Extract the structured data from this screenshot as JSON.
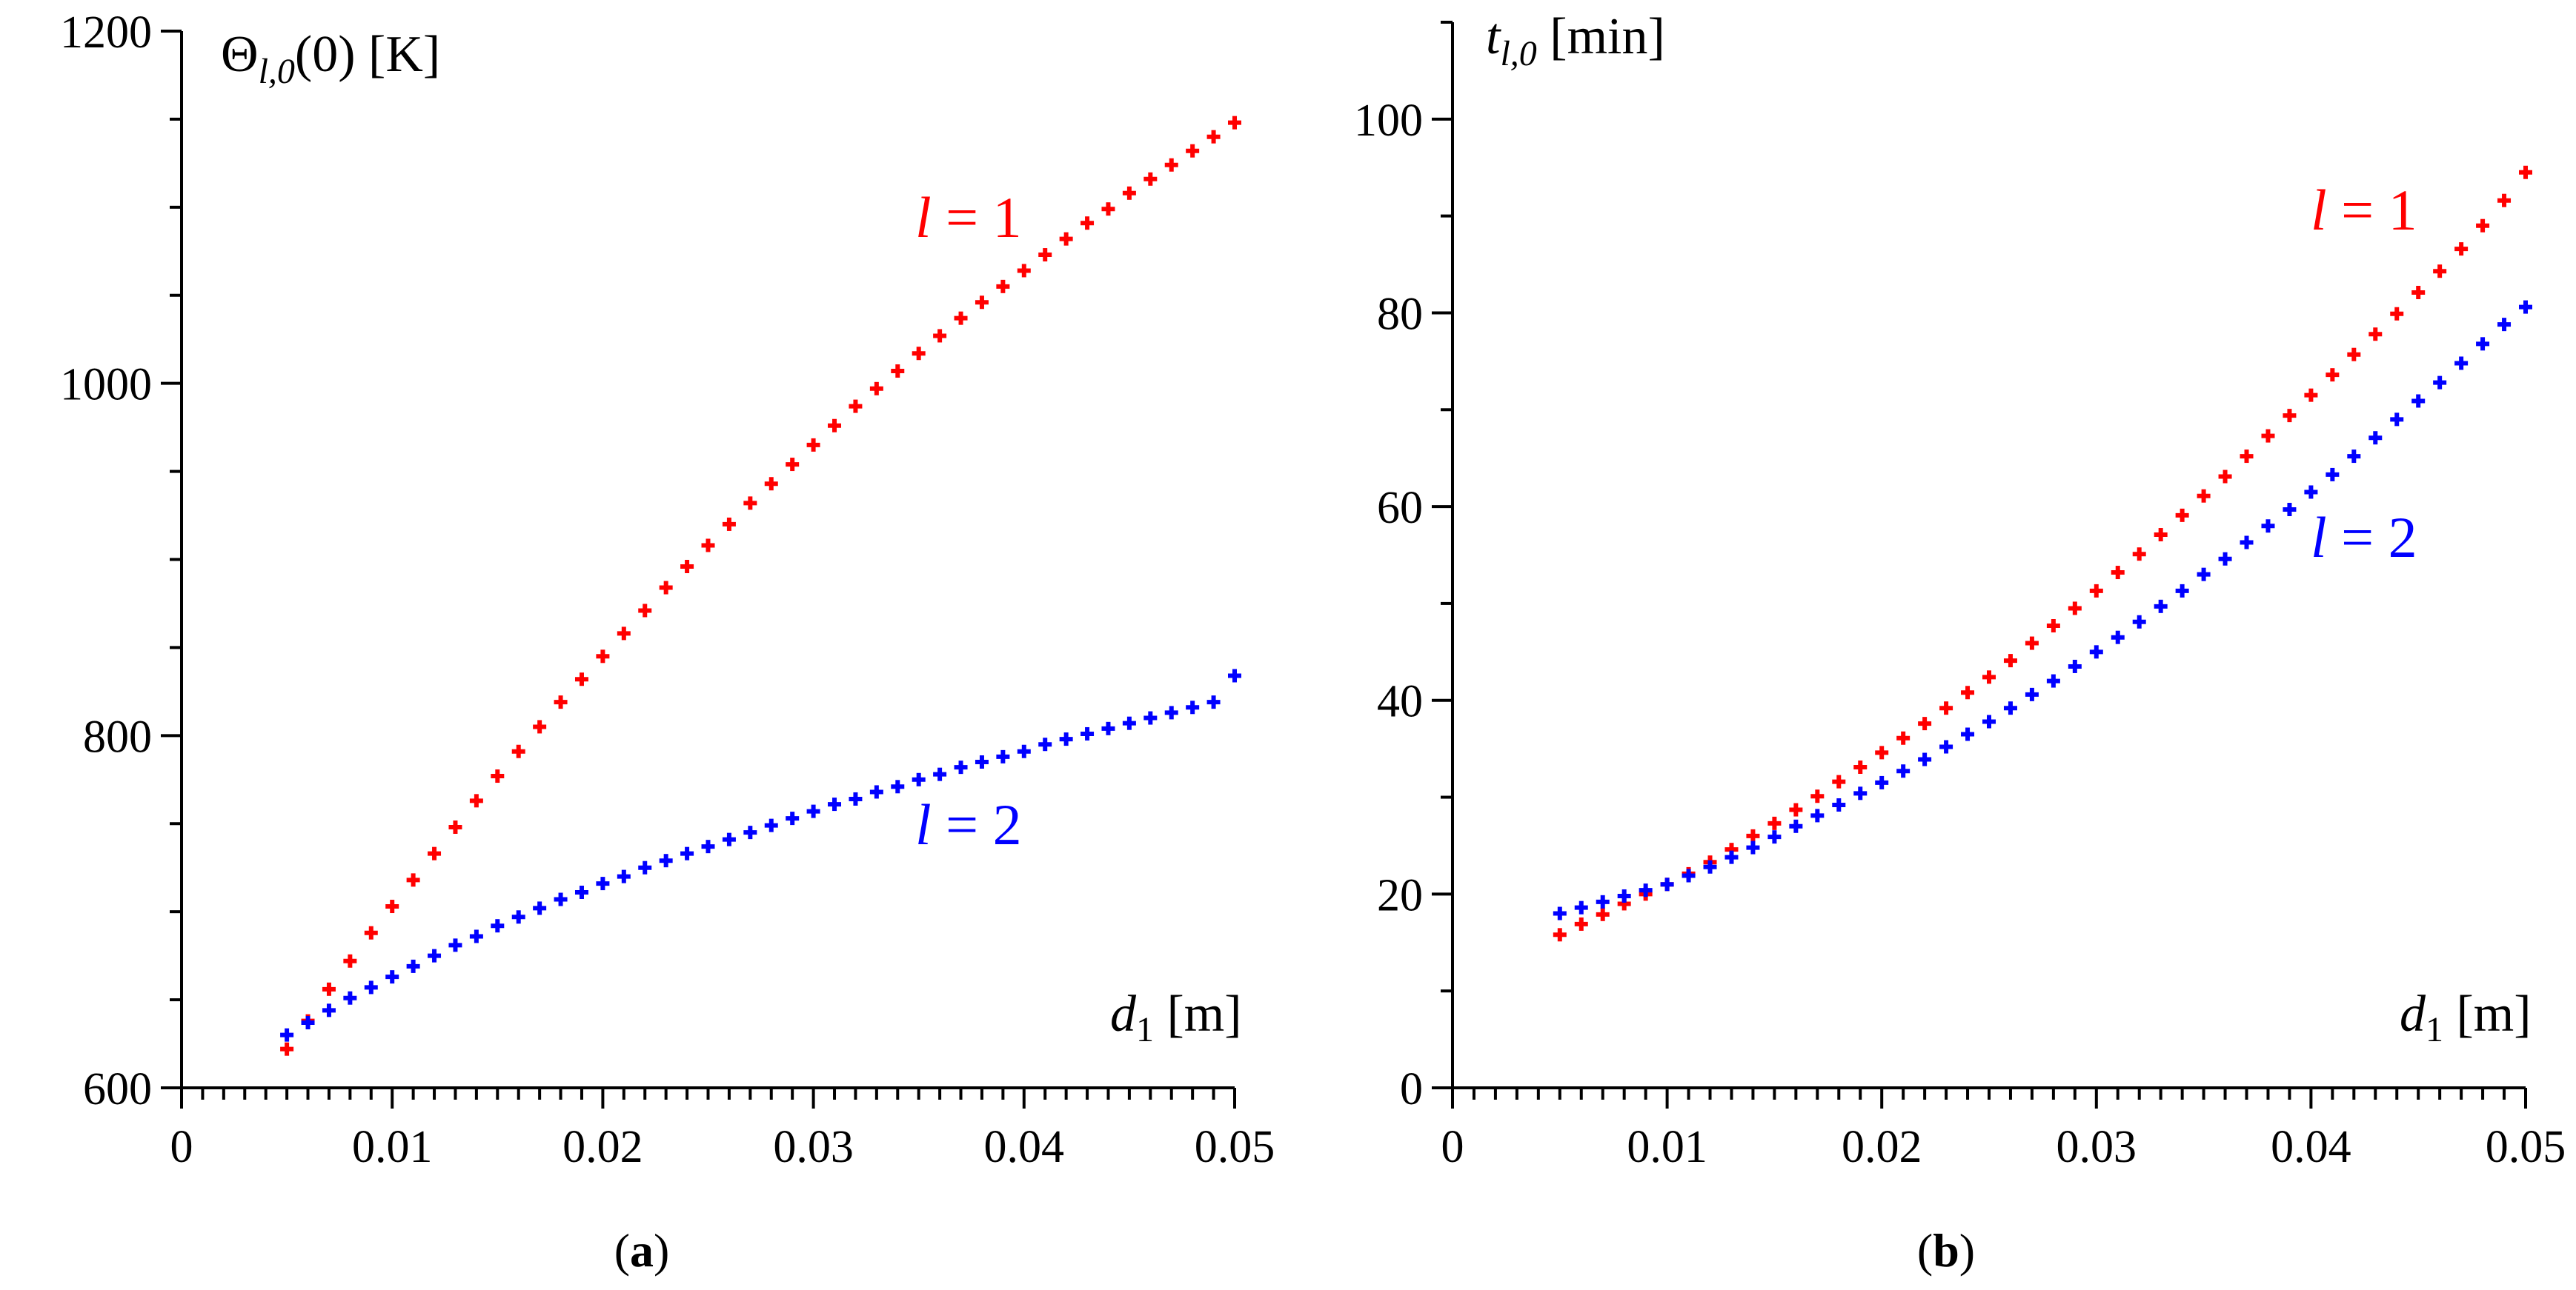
{
  "chart_data": [
    {
      "type": "scatter",
      "panel_label": "a",
      "ylabel_main": "Θ",
      "ylabel_sub": "l,0",
      "ylabel_rest": "(0) [K]",
      "xlabel_main": "d",
      "xlabel_sub": "1",
      "xlabel_rest": " [m]",
      "xlim": [
        0,
        0.05
      ],
      "ylim": [
        600,
        1200
      ],
      "xticks": [
        "0",
        "0.01",
        "0.02",
        "0.03",
        "0.04",
        "0.05"
      ],
      "yticks": [
        "600",
        "800",
        "1000",
        "1200"
      ],
      "grid": false,
      "x": [
        0.005,
        0.006,
        0.007,
        0.008,
        0.009,
        0.01,
        0.011,
        0.012,
        0.013,
        0.014,
        0.015,
        0.016,
        0.017,
        0.018,
        0.019,
        0.02,
        0.021,
        0.022,
        0.023,
        0.024,
        0.025,
        0.026,
        0.027,
        0.028,
        0.029,
        0.03,
        0.031,
        0.032,
        0.033,
        0.034,
        0.035,
        0.036,
        0.037,
        0.038,
        0.039,
        0.04,
        0.041,
        0.042,
        0.043,
        0.044,
        0.045,
        0.046,
        0.047,
        0.048,
        0.049,
        0.05
      ],
      "series": [
        {
          "label_var": "l",
          "label_rest": " = 1",
          "color": "#ff0000",
          "values": [
            622,
            638,
            656,
            672,
            688,
            703,
            718,
            733,
            748,
            763,
            777,
            791,
            805,
            819,
            832,
            845,
            858,
            871,
            884,
            896,
            908,
            920,
            932,
            943,
            954,
            965,
            976,
            987,
            997,
            1007,
            1017,
            1027,
            1037,
            1046,
            1055,
            1064,
            1073,
            1082,
            1091,
            1099,
            1108,
            1116,
            1124,
            1132,
            1140,
            1148
          ]
        },
        {
          "label_var": "l",
          "label_rest": " = 2",
          "color": "#0000ff",
          "values": [
            630,
            637,
            644,
            651,
            657,
            663,
            669,
            675,
            681,
            686,
            692,
            697,
            702,
            707,
            711,
            716,
            720,
            725,
            729,
            733,
            737,
            741,
            745,
            749,
            753,
            757,
            761,
            764,
            768,
            771,
            775,
            778,
            782,
            785,
            788,
            791,
            795,
            798,
            801,
            804,
            807,
            810,
            813,
            816,
            819,
            834
          ]
        }
      ]
    },
    {
      "type": "scatter",
      "panel_label": "b",
      "ylabel_main": "t",
      "ylabel_sub": "l,0",
      "ylabel_rest": " [min]",
      "xlabel_main": "d",
      "xlabel_sub": "1",
      "xlabel_rest": " [m]",
      "xlim": [
        0,
        0.05
      ],
      "ylim": [
        0,
        110
      ],
      "xticks": [
        "0",
        "0.01",
        "0.02",
        "0.03",
        "0.04",
        "0.05"
      ],
      "yticks": [
        "0",
        "20",
        "40",
        "60",
        "80",
        "100"
      ],
      "grid": false,
      "x": [
        0.005,
        0.006,
        0.007,
        0.008,
        0.009,
        0.01,
        0.011,
        0.012,
        0.013,
        0.014,
        0.015,
        0.016,
        0.017,
        0.018,
        0.019,
        0.02,
        0.021,
        0.022,
        0.023,
        0.024,
        0.025,
        0.026,
        0.027,
        0.028,
        0.029,
        0.03,
        0.031,
        0.032,
        0.033,
        0.034,
        0.035,
        0.036,
        0.037,
        0.038,
        0.039,
        0.04,
        0.041,
        0.042,
        0.043,
        0.044,
        0.045,
        0.046,
        0.047,
        0.048,
        0.049,
        0.05
      ],
      "series": [
        {
          "label_var": "l",
          "label_rest": " = 1",
          "color": "#ff0000",
          "values": [
            15.8,
            16.9,
            17.9,
            19.0,
            20.0,
            21.0,
            22.1,
            23.3,
            24.6,
            26.0,
            27.3,
            28.7,
            30.1,
            31.6,
            33.1,
            34.6,
            36.1,
            37.6,
            39.2,
            40.8,
            42.4,
            44.1,
            45.9,
            47.7,
            49.5,
            51.3,
            53.2,
            55.1,
            57.1,
            59.1,
            61.1,
            63.1,
            65.2,
            67.3,
            69.4,
            71.5,
            73.6,
            75.7,
            77.8,
            79.9,
            82.1,
            84.3,
            86.6,
            89.0,
            91.6,
            94.5
          ]
        },
        {
          "label_var": "l",
          "label_rest": " = 2",
          "color": "#0000ff",
          "values": [
            18.0,
            18.6,
            19.2,
            19.8,
            20.4,
            21.0,
            21.9,
            22.8,
            23.8,
            24.8,
            25.9,
            27.0,
            28.1,
            29.2,
            30.4,
            31.5,
            32.7,
            33.9,
            35.2,
            36.5,
            37.8,
            39.2,
            40.6,
            42.0,
            43.5,
            45.0,
            46.5,
            48.1,
            49.7,
            51.3,
            53.0,
            54.6,
            56.3,
            58.0,
            59.7,
            61.5,
            63.3,
            65.2,
            67.1,
            69.0,
            70.9,
            72.8,
            74.8,
            76.8,
            78.8,
            80.6
          ]
        }
      ]
    }
  ]
}
